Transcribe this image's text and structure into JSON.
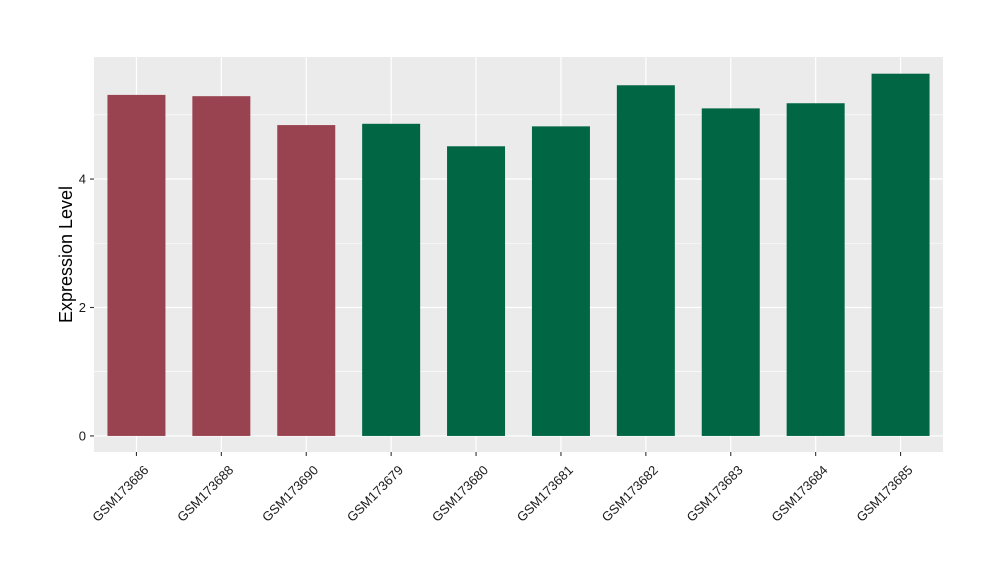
{
  "chart_data": {
    "type": "bar",
    "title": "",
    "xlabel": "",
    "ylabel": "Expression Level",
    "ylim": [
      -0.25,
      5.9
    ],
    "yticks": [
      0,
      2,
      4
    ],
    "grid": true,
    "legend": "none",
    "panel_background": "#EBEBEB",
    "grid_color": "#FFFFFF",
    "categories": [
      "GSM173686",
      "GSM173688",
      "GSM173690",
      "GSM173679",
      "GSM173680",
      "GSM173681",
      "GSM173682",
      "GSM173683",
      "GSM173684",
      "GSM173685"
    ],
    "values": [
      5.31,
      5.29,
      4.84,
      4.86,
      4.51,
      4.82,
      5.46,
      5.1,
      5.18,
      5.64
    ],
    "bar_colors": [
      "#9A4350",
      "#9A4350",
      "#9A4350",
      "#006644",
      "#006644",
      "#006644",
      "#006644",
      "#006644",
      "#006644",
      "#006644"
    ]
  }
}
